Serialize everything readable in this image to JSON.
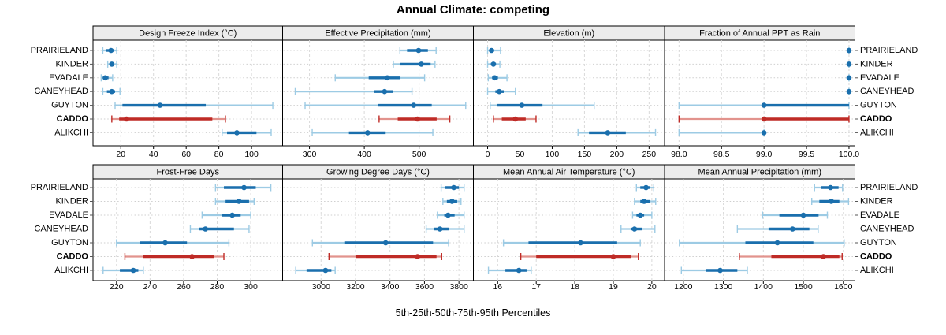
{
  "chart_data": {
    "type": "dotplot",
    "title": "Annual Climate: competing",
    "caption": "5th-25th-50th-75th-95th Percentiles",
    "percentile_order": [
      "p5",
      "p25",
      "p50",
      "p75",
      "p95"
    ],
    "sites": [
      "PRAIRIELAND",
      "KINDER",
      "EVADALE",
      "CANEYHEAD",
      "GUYTON",
      "CADDO",
      "ALIKCHI"
    ],
    "highlight_site": "CADDO",
    "legend_position": "none",
    "grid": "on",
    "colors": {
      "series": "#1a6fad",
      "series_light": "#9dcbe4",
      "highlight": "#bf2b26",
      "highlight_light": "#e2938d",
      "strip_bg": "#ececec",
      "panel_border": "#000000",
      "gridline": "#d9d9d9",
      "row_dots": "#cfcfcf",
      "text": "#000000"
    },
    "panels": [
      {
        "title": "Design Freeze Index (°C)",
        "row": 0,
        "col": 0,
        "xlim": [
          3,
          119
        ],
        "tick_values": [
          20,
          40,
          60,
          80,
          100
        ],
        "tick_labels": [
          "20",
          "40",
          "60",
          "80",
          "100"
        ],
        "values": {
          "PRAIRIELAND": [
            9,
            11,
            14,
            16,
            17.5
          ],
          "KINDER": [
            12,
            13,
            14.5,
            16,
            17.5
          ],
          "EVADALE": [
            8,
            9,
            10.5,
            12.5,
            15
          ],
          "CANEYHEAD": [
            9,
            11.5,
            14.5,
            16.5,
            19.5
          ],
          "GUYTON": [
            16.5,
            21,
            44,
            72,
            113
          ],
          "CADDO": [
            14.5,
            19,
            23.5,
            76,
            84
          ],
          "ALIKCHI": [
            82,
            85,
            91,
            103,
            112
          ]
        }
      },
      {
        "title": "Effective Precipitation (mm)",
        "row": 0,
        "col": 1,
        "xlim": [
          251,
          599
        ],
        "tick_values": [
          300,
          400,
          500
        ],
        "tick_labels": [
          "300",
          "400",
          "500"
        ],
        "values": {
          "PRAIRIELAND": [
            465,
            478,
            499,
            516,
            531
          ],
          "KINDER": [
            453,
            466,
            504,
            521,
            529
          ],
          "EVADALE": [
            347,
            408,
            442,
            466,
            510
          ],
          "CANEYHEAD": [
            274,
            418,
            437,
            452,
            487
          ],
          "GUYTON": [
            292,
            425,
            490,
            523,
            585
          ],
          "CADDO": [
            427,
            461,
            497,
            532,
            556
          ],
          "ALIKCHI": [
            305,
            372,
            406,
            439,
            525
          ]
        }
      },
      {
        "title": "Elevation (m)",
        "row": 0,
        "col": 2,
        "xlim": [
          -22,
          274
        ],
        "tick_values": [
          0,
          50,
          100,
          150,
          200,
          250
        ],
        "tick_labels": [
          "0",
          "50",
          "100",
          "150",
          "200",
          "250"
        ],
        "values": {
          "PRAIRIELAND": [
            0,
            3,
            6,
            10,
            20
          ],
          "KINDER": [
            0,
            5,
            9,
            13,
            19
          ],
          "EVADALE": [
            1,
            7,
            11,
            16,
            30
          ],
          "CANEYHEAD": [
            0,
            12,
            18,
            25,
            43
          ],
          "GUYTON": [
            4,
            14,
            53,
            85,
            165
          ],
          "CADDO": [
            9,
            22,
            43,
            59,
            75
          ],
          "ALIKCHI": [
            140,
            157,
            186,
            214,
            260
          ]
        }
      },
      {
        "title": "Fraction of Annual PPT as Rain",
        "row": 0,
        "col": 3,
        "xlim": [
          97.83,
          100.07
        ],
        "tick_values": [
          98.0,
          98.5,
          99.0,
          99.5,
          100.0
        ],
        "tick_labels": [
          "98.0",
          "98.5",
          "99.0",
          "99.5",
          "100.0"
        ],
        "values": {
          "PRAIRIELAND": [
            100,
            100,
            100,
            100,
            100
          ],
          "KINDER": [
            100,
            100,
            100,
            100,
            100
          ],
          "EVADALE": [
            100,
            100,
            100,
            100,
            100
          ],
          "CANEYHEAD": [
            100,
            100,
            100,
            100,
            100
          ],
          "GUYTON": [
            98,
            99,
            99,
            100,
            100
          ],
          "CADDO": [
            98,
            99,
            99,
            100,
            100
          ],
          "ALIKCHI": [
            98,
            99,
            99,
            99,
            99
          ]
        }
      },
      {
        "title": "Frost-Free Days",
        "row": 1,
        "col": 0,
        "xlim": [
          206,
          319
        ],
        "tick_values": [
          220,
          240,
          260,
          280,
          300
        ],
        "tick_labels": [
          "220",
          "240",
          "260",
          "280",
          "300"
        ],
        "values": {
          "PRAIRIELAND": [
            279,
            284,
            296,
            303,
            312
          ],
          "KINDER": [
            279,
            285,
            293,
            299,
            302
          ],
          "EVADALE": [
            271,
            283,
            289,
            294,
            300
          ],
          "CANEYHEAD": [
            264,
            269,
            273,
            290,
            299
          ],
          "GUYTON": [
            220,
            234,
            249,
            262,
            287
          ],
          "CADDO": [
            225,
            236,
            265,
            278,
            284
          ],
          "ALIKCHI": [
            212,
            222,
            230,
            233,
            236
          ]
        }
      },
      {
        "title": "Growing Degree Days (°C)",
        "row": 1,
        "col": 1,
        "xlim": [
          2777,
          3884
        ],
        "tick_values": [
          3000,
          3200,
          3400,
          3600,
          3800
        ],
        "tick_labels": [
          "3000",
          "3200",
          "3400",
          "3600",
          "3800"
        ],
        "values": {
          "PRAIRIELAND": [
            3697,
            3720,
            3770,
            3800,
            3830
          ],
          "KINDER": [
            3707,
            3730,
            3760,
            3790,
            3812
          ],
          "EVADALE": [
            3675,
            3715,
            3737,
            3775,
            3830
          ],
          "CANEYHEAD": [
            3610,
            3655,
            3690,
            3740,
            3830
          ],
          "GUYTON": [
            2950,
            3135,
            3375,
            3650,
            3740
          ],
          "CADDO": [
            3046,
            3200,
            3560,
            3670,
            3700
          ],
          "ALIKCHI": [
            2853,
            2916,
            3026,
            3060,
            3082
          ]
        }
      },
      {
        "title": "Mean Annual Air Temperature (°C)",
        "row": 1,
        "col": 2,
        "xlim": [
          15.37,
          20.33
        ],
        "tick_values": [
          16,
          17,
          18,
          19,
          20
        ],
        "tick_labels": [
          "16",
          "17",
          "18",
          "19",
          "20"
        ],
        "values": {
          "PRAIRIELAND": [
            19.6,
            19.7,
            19.85,
            19.95,
            20.05
          ],
          "KINDER": [
            19.55,
            19.7,
            19.8,
            19.95,
            20.1
          ],
          "EVADALE": [
            19.5,
            19.6,
            19.7,
            19.8,
            20.0
          ],
          "CANEYHEAD": [
            19.2,
            19.45,
            19.55,
            19.75,
            20.08
          ],
          "GUYTON": [
            16.15,
            16.8,
            18.15,
            19.1,
            19.7
          ],
          "CADDO": [
            16.6,
            17.0,
            19.0,
            19.45,
            19.65
          ],
          "ALIKCHI": [
            15.76,
            16.2,
            16.55,
            16.75,
            16.87
          ]
        }
      },
      {
        "title": "Mean Annual Precipitation (mm)",
        "row": 1,
        "col": 3,
        "xlim": [
          1153,
          1629
        ],
        "tick_values": [
          1200,
          1300,
          1400,
          1500,
          1600
        ],
        "tick_labels": [
          "1200",
          "1300",
          "1400",
          "1500",
          "1600"
        ],
        "values": {
          "PRAIRIELAND": [
            1528,
            1545,
            1568,
            1588,
            1598
          ],
          "KINDER": [
            1521,
            1540,
            1570,
            1590,
            1613
          ],
          "EVADALE": [
            1398,
            1440,
            1500,
            1538,
            1560
          ],
          "CANEYHEAD": [
            1335,
            1413,
            1473,
            1515,
            1537
          ],
          "GUYTON": [
            1190,
            1355,
            1435,
            1525,
            1602
          ],
          "CADDO": [
            1340,
            1420,
            1550,
            1590,
            1597
          ],
          "ALIKCHI": [
            1195,
            1256,
            1292,
            1335,
            1360
          ]
        }
      }
    ]
  }
}
